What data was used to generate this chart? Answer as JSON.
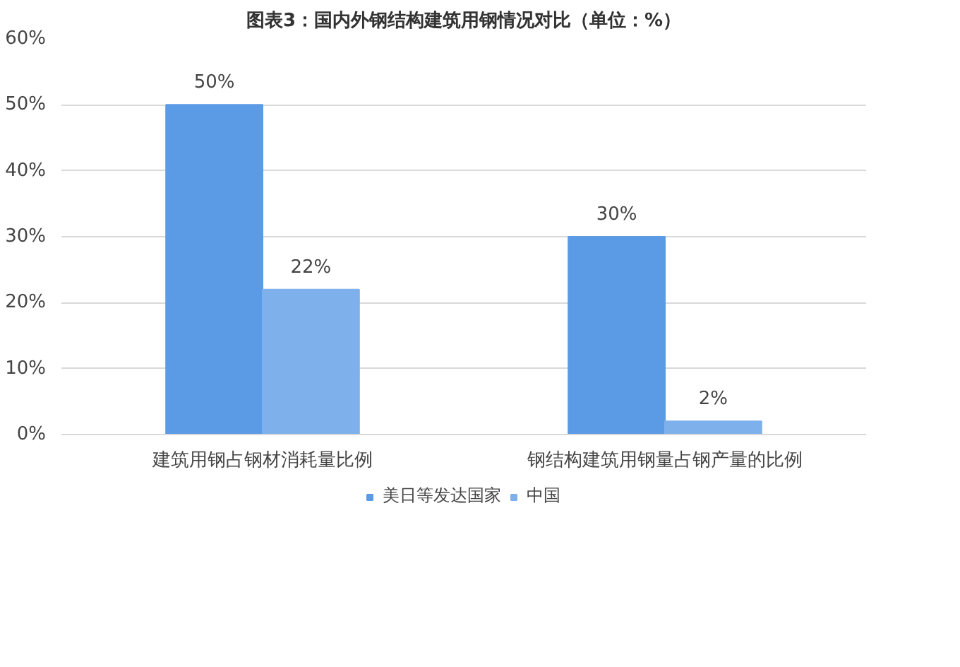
{
  "chart_data": {
    "type": "bar",
    "title": "图表3：国内外钢结构建筑用钢情况对比（单位：%）",
    "categories": [
      "建筑用钢占钢材消耗量比例",
      "钢结构建筑用钢量占钢产量的比例"
    ],
    "series": [
      {
        "name": "美日等发达国家",
        "color": "#5b9be6",
        "values": [
          50,
          30
        ],
        "value_labels": [
          "50%",
          "30%"
        ]
      },
      {
        "name": "中国",
        "color": "#7eb0ec",
        "values": [
          22,
          2
        ],
        "value_labels": [
          "22%",
          "2%"
        ]
      }
    ],
    "ylim": [
      0,
      60
    ],
    "yticks": [
      {
        "value": 0,
        "label": "0%"
      },
      {
        "value": 10,
        "label": "10%"
      },
      {
        "value": 20,
        "label": "20%"
      },
      {
        "value": 30,
        "label": "30%"
      },
      {
        "value": 40,
        "label": "40%"
      },
      {
        "value": 50,
        "label": "50%"
      },
      {
        "value": 60,
        "label": "60%"
      }
    ],
    "grid": "y",
    "legend": "bottom"
  }
}
